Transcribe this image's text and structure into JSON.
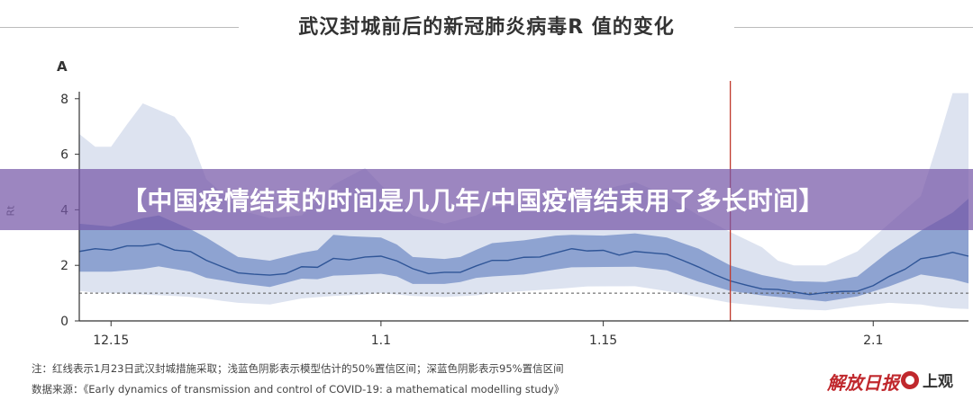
{
  "title": "武汉封城前后的新冠肺炎病毒R  值的变化",
  "panel_label": "A",
  "banner": "【中国疫情结束的时间是几几年/中国疫情结束用了多长时间】",
  "notes": {
    "note": "注：红线表示1月23日武汉封城措施采取；浅蓝色阴影表示模型估计的50%置信区间；深蓝色阴影表示95%置信区间",
    "source": "数据来源：《Early dynamics of transmission and control of COVID-19: a mathematical modelling study》"
  },
  "logos": {
    "jiefang": "解放日报",
    "shangguan": "上观"
  },
  "colors": {
    "median": "#2f5597",
    "dark_band": "#8ea3d1",
    "light_band": "#dde3f0",
    "red_line": "#c0392b",
    "banner": "#7658a8"
  },
  "chart_data": {
    "type": "line",
    "title": "",
    "ylabel": "Rt",
    "xlabel": "",
    "ylim": [
      0,
      8.3
    ],
    "xrange": [
      "12.13",
      "2.7"
    ],
    "yticks": [
      "0",
      "2",
      "4",
      "6",
      "8"
    ],
    "xticks": [
      "12.15",
      "1.1",
      "1.15",
      "2.1"
    ],
    "reference_line": 1,
    "event_line": "1.23",
    "median": {
      "x": [
        "12.13",
        "12.14",
        "12.15",
        "12.16",
        "12.17",
        "12.18",
        "12.19",
        "12.20",
        "12.21",
        "12.22",
        "12.23",
        "12.24",
        "12.25",
        "12.26",
        "12.27",
        "12.28",
        "12.29",
        "12.30",
        "12.31",
        "1.1",
        "1.2",
        "1.3",
        "1.4",
        "1.5",
        "1.6",
        "1.7",
        "1.8",
        "1.9",
        "1.10",
        "1.11",
        "1.12",
        "1.13",
        "1.14",
        "1.15",
        "1.16",
        "1.17",
        "1.18",
        "1.19",
        "1.20",
        "1.21",
        "1.22",
        "1.23",
        "1.24",
        "1.25",
        "1.26",
        "1.27",
        "1.28",
        "1.29",
        "1.30",
        "1.31",
        "2.1",
        "2.2",
        "2.3",
        "2.4",
        "2.5",
        "2.6",
        "2.7"
      ],
      "y": [
        2.5,
        2.6,
        2.55,
        2.7,
        2.7,
        2.78,
        2.55,
        2.5,
        2.18,
        1.95,
        1.73,
        1.68,
        1.65,
        1.7,
        1.95,
        1.93,
        2.25,
        2.2,
        2.3,
        2.33,
        2.16,
        1.88,
        1.7,
        1.75,
        1.75,
        1.98,
        2.18,
        2.18,
        2.29,
        2.3,
        2.45,
        2.6,
        2.52,
        2.54,
        2.37,
        2.5,
        2.45,
        2.4,
        2.18,
        1.94,
        1.67,
        1.44,
        1.29,
        1.15,
        1.13,
        1.04,
        0.95,
        1.02,
        1.06,
        1.07,
        1.27,
        1.6,
        1.86,
        2.24,
        2.33,
        2.47,
        2.33
      ]
    },
    "ci50": {
      "x": [
        "12.13",
        "12.15",
        "12.17",
        "12.18",
        "12.20",
        "12.21",
        "12.23",
        "12.25",
        "12.27",
        "12.28",
        "12.29",
        "12.30",
        "1.1",
        "1.2",
        "1.3",
        "1.5",
        "1.6",
        "1.7",
        "1.8",
        "1.10",
        "1.12",
        "1.13",
        "1.15",
        "1.17",
        "1.19",
        "1.21",
        "1.23",
        "1.25",
        "1.27",
        "1.29",
        "1.31",
        "2.2",
        "2.4",
        "2.6",
        "2.7"
      ],
      "upper": [
        3.5,
        3.4,
        3.7,
        3.8,
        3.3,
        3.0,
        2.3,
        2.17,
        2.45,
        2.55,
        3.1,
        3.05,
        3.0,
        2.75,
        2.3,
        2.23,
        2.3,
        2.56,
        2.8,
        2.9,
        3.07,
        3.1,
        3.07,
        3.15,
        3.0,
        2.6,
        2.0,
        1.65,
        1.43,
        1.4,
        1.6,
        2.5,
        3.25,
        3.9,
        4.4
      ],
      "lower": [
        1.77,
        1.77,
        1.87,
        1.96,
        1.77,
        1.55,
        1.36,
        1.22,
        1.52,
        1.5,
        1.63,
        1.65,
        1.7,
        1.6,
        1.33,
        1.33,
        1.4,
        1.55,
        1.6,
        1.67,
        1.85,
        1.93,
        1.94,
        1.95,
        1.82,
        1.41,
        1.08,
        0.92,
        0.81,
        0.7,
        0.88,
        1.24,
        1.67,
        1.5,
        1.35
      ]
    },
    "ci95": {
      "x": [
        "12.13",
        "12.14",
        "12.15",
        "12.16",
        "12.17",
        "12.19",
        "12.20",
        "12.21",
        "12.22",
        "12.23",
        "12.25",
        "12.27",
        "12.29",
        "12.31",
        "1.1",
        "1.2",
        "1.3",
        "1.5",
        "1.7",
        "1.8",
        "1.12",
        "1.14",
        "1.17",
        "1.19",
        "1.21",
        "1.23",
        "1.25",
        "1.26",
        "1.27",
        "1.29",
        "1.31",
        "2.2",
        "2.4",
        "2.5",
        "2.6",
        "2.7"
      ],
      "upper": [
        6.73,
        6.27,
        6.27,
        7.07,
        7.83,
        7.35,
        6.6,
        5.1,
        4.6,
        4.0,
        3.7,
        3.8,
        4.9,
        5.5,
        4.9,
        4.3,
        3.8,
        3.5,
        3.8,
        4.1,
        4.4,
        4.6,
        5.0,
        4.5,
        3.8,
        3.2,
        2.65,
        2.17,
        2.0,
        2.0,
        2.5,
        3.5,
        4.5,
        6.3,
        8.2,
        8.2
      ],
      "lower": [
        1.08,
        1.02,
        1.0,
        0.97,
        0.95,
        0.9,
        0.86,
        0.8,
        0.72,
        0.65,
        0.59,
        0.81,
        0.9,
        0.95,
        1.0,
        0.95,
        0.9,
        0.86,
        0.92,
        1.0,
        1.15,
        1.24,
        1.25,
        1.07,
        0.86,
        0.65,
        0.54,
        0.48,
        0.42,
        0.38,
        0.54,
        0.65,
        0.59,
        0.5,
        0.45,
        0.43
      ]
    }
  }
}
